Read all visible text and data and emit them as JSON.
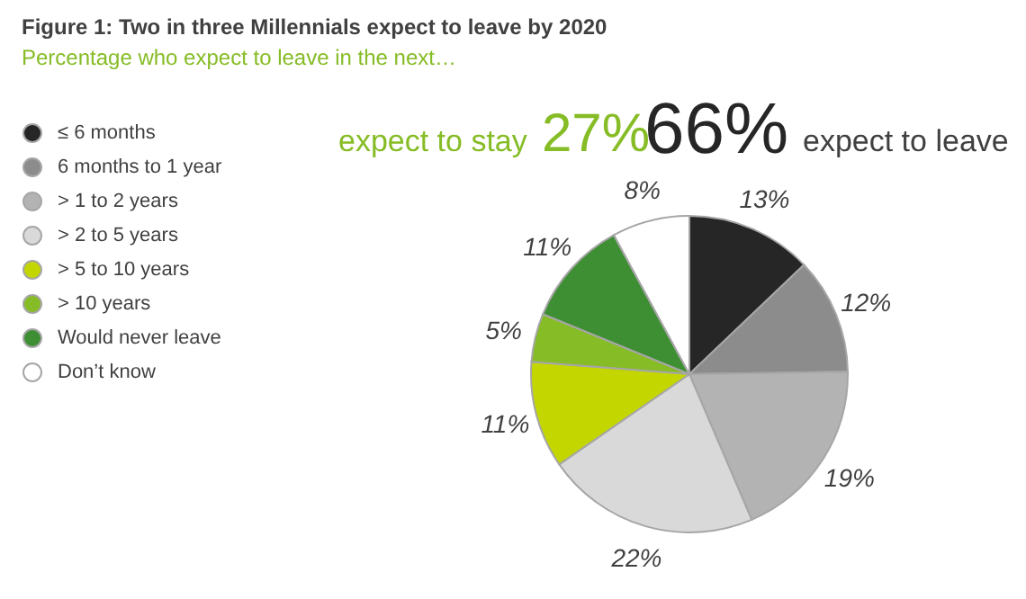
{
  "chart_data": {
    "type": "pie",
    "title": "Figure 1: Two in three Millennials expect to leave by 2020",
    "subtitle": "Percentage who expect to leave in the next…",
    "categories": [
      "≤ 6 months",
      "6 months to 1 year",
      "> 1 to 2 years",
      "> 2 to 5 years",
      "> 5 to 10 years",
      "> 10 years",
      "Would never leave",
      "Don’t know"
    ],
    "values": [
      13,
      12,
      19,
      22,
      11,
      5,
      11,
      8
    ],
    "value_labels": [
      "13%",
      "12%",
      "19%",
      "22%",
      "11%",
      "5%",
      "11%",
      "8%"
    ],
    "colors": [
      "#262626",
      "#8c8c8c",
      "#b3b3b3",
      "#d9d9d9",
      "#c4d600",
      "#86bc25",
      "#3e8e33",
      "#ffffff"
    ],
    "annotations": [
      "expect to stay",
      "27%",
      "66%",
      "expect to leave"
    ],
    "legend": "left"
  }
}
